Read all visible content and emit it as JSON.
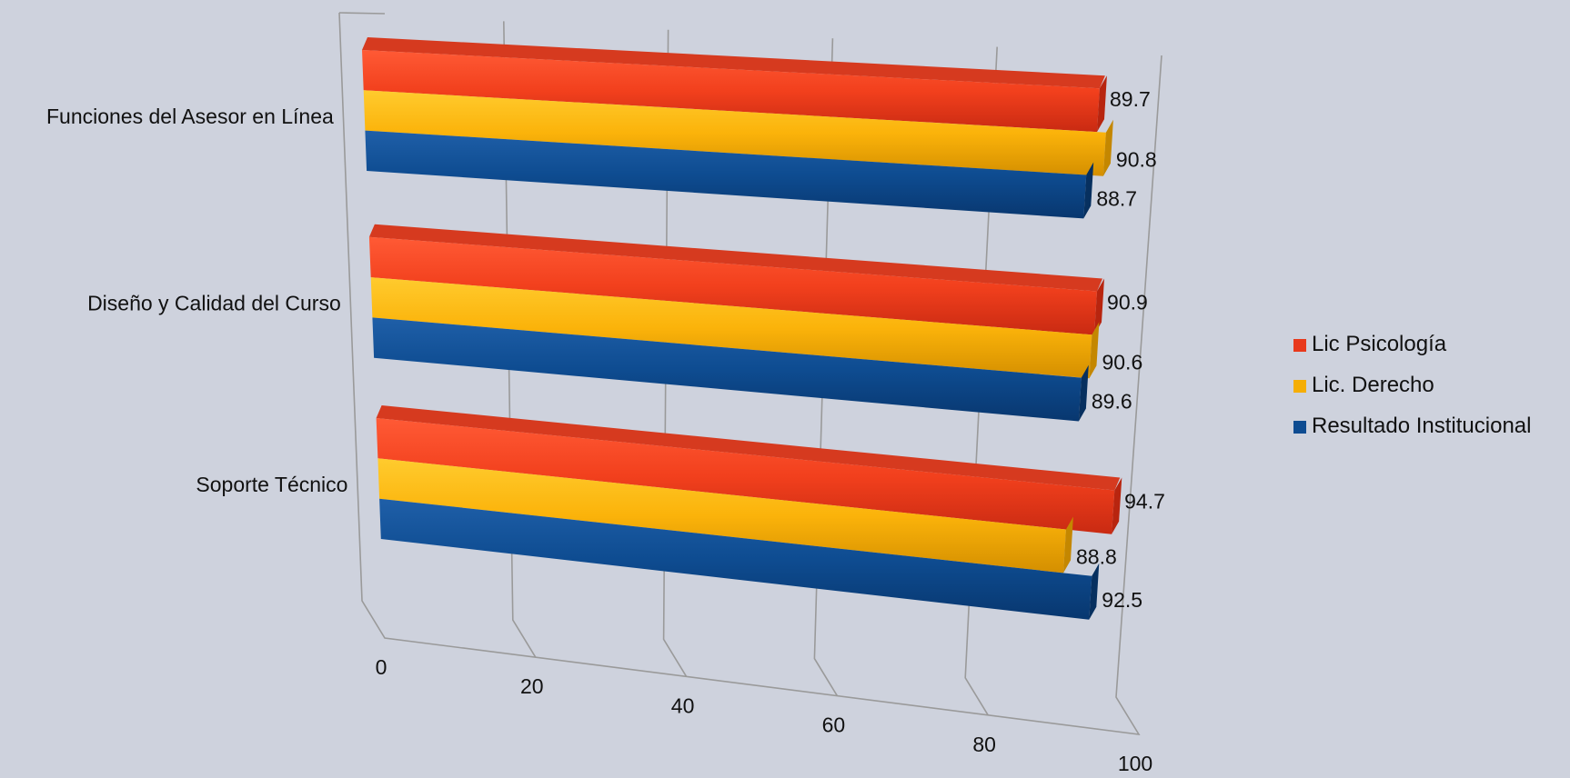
{
  "chart_data": {
    "type": "bar",
    "orientation": "horizontal",
    "style": "3d-perspective",
    "title": "",
    "xlabel": "",
    "ylabel": "",
    "xlim": [
      0,
      100
    ],
    "x_ticks": [
      "0",
      "20",
      "40",
      "60",
      "80",
      "100"
    ],
    "categories": [
      "Funciones del Asesor en Línea",
      "Diseño y Calidad del Curso",
      "Soporte Técnico"
    ],
    "series": [
      {
        "name": "Lic Psicología",
        "color": "#e8391c",
        "values": [
          89.7,
          90.9,
          94.7
        ]
      },
      {
        "name": "Lic. Derecho",
        "color": "#f5ae05",
        "values": [
          90.8,
          90.6,
          88.8
        ]
      },
      {
        "name": "Resultado Institucional",
        "color": "#0e4c91",
        "values": [
          88.7,
          89.6,
          92.5
        ]
      }
    ],
    "data_labels": true,
    "grid": true,
    "legend_position": "right",
    "background": "#ced2dd"
  }
}
